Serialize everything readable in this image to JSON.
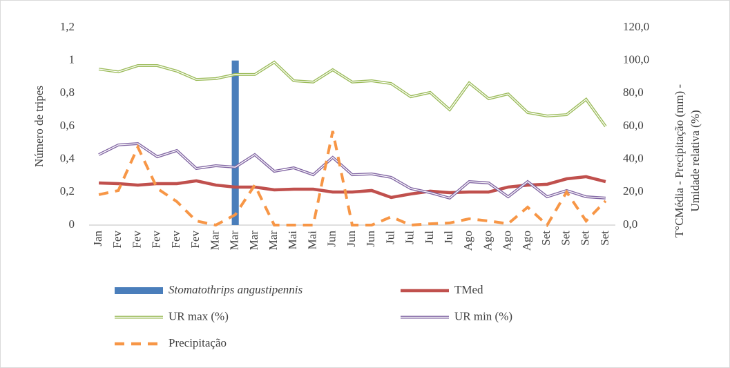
{
  "chart_data": {
    "type": "bar-line",
    "ylabel": "Número de tripes",
    "y2label": [
      "T°CMédia - Precipitação (mm) -",
      "Umidade relativa (%)"
    ],
    "categories": [
      "Jan",
      "Fev",
      "Fev",
      "Fev",
      "Fev",
      "Fev",
      "Mar",
      "Mar",
      "Mar",
      "Mar",
      "Mai",
      "Mai",
      "Jun",
      "Jun",
      "Jun",
      "Jul",
      "Jul",
      "Jul",
      "Jul",
      "Ago",
      "Ago",
      "Ago",
      "Ago",
      "Set",
      "Set",
      "Set",
      "Set"
    ],
    "ylim": [
      0,
      1.2
    ],
    "yticks": [
      0,
      {
        "value": 0.2,
        "label": "0,2"
      },
      {
        "value": 0.4,
        "label": "0,4"
      },
      {
        "value": 0.6,
        "label": "0,6"
      },
      {
        "value": 0.8,
        "label": "0,8"
      },
      1,
      {
        "value": 1.2,
        "label": "1,2"
      }
    ],
    "y2lim": [
      0,
      120
    ],
    "y2ticks": [
      {
        "value": 0,
        "label": "0,0"
      },
      {
        "value": 20,
        "label": "20,0"
      },
      {
        "value": 40,
        "label": "40,0"
      },
      {
        "value": 60,
        "label": "60,0"
      },
      {
        "value": 80,
        "label": "80,0"
      },
      {
        "value": 100,
        "label": "100,0"
      },
      {
        "value": 120,
        "label": "120,0"
      }
    ],
    "grid": false,
    "legend": "bottom",
    "series": [
      {
        "name": "Stomatothrips angustipennis",
        "type": "bar",
        "color": "#4a7ebb",
        "values": [
          null,
          null,
          null,
          null,
          null,
          null,
          null,
          1,
          null,
          null,
          null,
          null,
          null,
          null,
          null,
          null,
          null,
          null,
          null,
          null,
          null,
          null,
          null,
          null,
          null,
          null,
          null
        ]
      },
      {
        "name": "TMed",
        "type": "line",
        "style": "solid",
        "axis": "y2",
        "color": "#c0504d",
        "values": [
          25.6,
          25.2,
          24.3,
          25.2,
          25.2,
          26.9,
          24.3,
          23.1,
          23.1,
          21.4,
          21.8,
          21.8,
          20.1,
          20.1,
          21.0,
          16.8,
          18.9,
          20.6,
          19.7,
          20.1,
          20.1,
          23.1,
          24.3,
          24.8,
          28.1,
          29.4,
          26.4
        ]
      },
      {
        "name": "UR max (%)",
        "type": "line",
        "style": "double",
        "axis": "y2",
        "color": "#9bbb59",
        "values": [
          94.8,
          93.1,
          96.9,
          96.9,
          93.6,
          88.5,
          89.0,
          91.5,
          91.5,
          99.0,
          87.7,
          86.9,
          94.4,
          86.9,
          87.7,
          86.0,
          78.0,
          80.6,
          70.1,
          86.4,
          76.8,
          79.7,
          68.4,
          66.3,
          67.1,
          76.4,
          60.0
        ]
      },
      {
        "name": "UR min (%)",
        "type": "line",
        "style": "double",
        "axis": "y2",
        "color": "#8064a2",
        "values": [
          42.8,
          48.7,
          49.5,
          41.5,
          45.3,
          34.4,
          36.1,
          35.2,
          42.8,
          32.7,
          34.8,
          30.6,
          41.1,
          30.6,
          31.1,
          29.0,
          22.2,
          19.7,
          16.4,
          26.4,
          25.6,
          17.2,
          26.4,
          17.2,
          21.0,
          17.2,
          16.4
        ]
      },
      {
        "name": "Precipitação",
        "type": "line",
        "style": "dashed",
        "axis": "y2",
        "color": "#f79646",
        "values": [
          18.5,
          21.0,
          47.4,
          22.2,
          14.3,
          2.5,
          0,
          6.3,
          24.3,
          0,
          0,
          0,
          57.1,
          0,
          0,
          5.0,
          0,
          0.8,
          1.3,
          3.8,
          2.5,
          0.8,
          10.9,
          0,
          20.1,
          2.5,
          14.7
        ]
      }
    ]
  }
}
